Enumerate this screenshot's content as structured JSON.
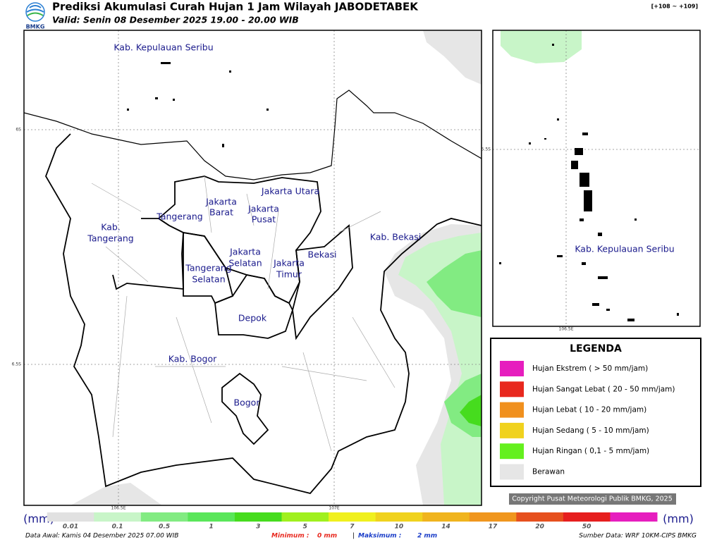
{
  "header": {
    "logo": "BMKG",
    "title": "Prediksi Akumulasi Curah Hujan 1 Jam Wilayah JABODETABEK",
    "subtitle": "Valid: Senin 08 Desember 2025 19.00 - 20.00 WIB",
    "range": "[+108 ~ +109]"
  },
  "map": {
    "labels": [
      [
        "Kab. Kepulauan Seribu"
      ],
      [
        "Jakarta Utara"
      ],
      [
        "Jakarta",
        "Barat"
      ],
      [
        "Jakarta",
        "Pusat"
      ],
      [
        "Tangerang"
      ],
      [
        "Kab.",
        "Tangerang"
      ],
      [
        "Jakarta",
        "Selatan"
      ],
      [
        "Jakarta",
        "Timur"
      ],
      [
        "Bekasi"
      ],
      [
        "Kab. Bekasi"
      ],
      [
        "Tangerang",
        "Selatan"
      ],
      [
        "Depok"
      ],
      [
        "Kab. Bogor"
      ],
      [
        "Bogor"
      ]
    ],
    "lat_labels": [
      "6S",
      "6.5S"
    ],
    "lon_labels": [
      "106.5E",
      "107E"
    ]
  },
  "inset": {
    "label": "Kab. Kepulauan Seribu",
    "lat_label": "5.5S",
    "lon_label": "106.5E"
  },
  "legend": {
    "title": "LEGENDA",
    "items": [
      {
        "label": "Hujan Ekstrem ( > 50 mm/jam)",
        "color": "#e61ebe"
      },
      {
        "label": "Hujan Sangat Lebat ( 20 - 50 mm/jam)",
        "color": "#e8281e"
      },
      {
        "label": "Hujan Lebat ( 10 - 20 mm/jam)",
        "color": "#f0901e"
      },
      {
        "label": "Hujan Sedang ( 5 - 10 mm/jam)",
        "color": "#f0d21e"
      },
      {
        "label": "Hujan Ringan ( 0,1 - 5 mm/jam)",
        "color": "#64f01e"
      },
      {
        "label": "Berawan",
        "color": "#e6e6e6"
      }
    ]
  },
  "copyright": "Copyright Pusat Meteorologi Publik BMKG, 2025",
  "colorbar": {
    "unit": "(mm)",
    "ticks": [
      0.01,
      0.1,
      0.5,
      1,
      3,
      5,
      7,
      10,
      14,
      17,
      20,
      50
    ],
    "colors": [
      "#e1e1e1",
      "#c8f5c8",
      "#82eb82",
      "#5ae65a",
      "#46dc1e",
      "#a0f01e",
      "#f0f01e",
      "#f0d21e",
      "#f0b41e",
      "#f0961e",
      "#e6501e",
      "#e61e1e",
      "#e61ebe"
    ]
  },
  "footer": {
    "data_awal": "Data Awal: Kamis 04 Desember 2025 07.00 WIB",
    "min_label": "Minimum :",
    "min_value": "0 mm",
    "separator": "|",
    "max_label": "Maksimum :",
    "max_value": "2 mm",
    "source": "Sumber Data: WRF 10KM-CIPS BMKG"
  }
}
